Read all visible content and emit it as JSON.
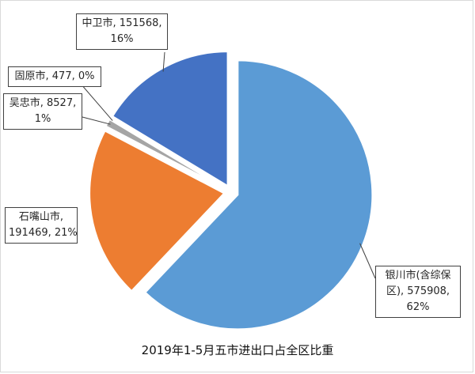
{
  "chart_data": {
    "type": "pie",
    "title": "2019年1-5月五市进出口占全区比重",
    "slices": [
      {
        "label": "银川市(含综保区)",
        "value": 575908,
        "percent": "62%",
        "color": "#5b9bd5"
      },
      {
        "label": "石嘴山市",
        "value": 191469,
        "percent": "21%",
        "color": "#ed7d31"
      },
      {
        "label": "吴忠市",
        "value": 8527,
        "percent": "1%",
        "color": "#a5a5a5"
      },
      {
        "label": "固原市",
        "value": 477,
        "percent": "0%",
        "color": "#ffc000"
      },
      {
        "label": "中卫市",
        "value": 151568,
        "percent": "16%",
        "color": "#4472c4"
      }
    ],
    "labels": [
      {
        "line1": "中卫市, 151568,",
        "line2": "16%"
      },
      {
        "line1": "固原市, 477, 0%"
      },
      {
        "line1": "吴忠市, 8527,",
        "line2": "1%"
      },
      {
        "line1": "石嘴山市,",
        "line2": "191469, 21%"
      },
      {
        "line1": "银川市(含综保",
        "line2": "区), 575908,",
        "line3": "62%"
      }
    ]
  }
}
